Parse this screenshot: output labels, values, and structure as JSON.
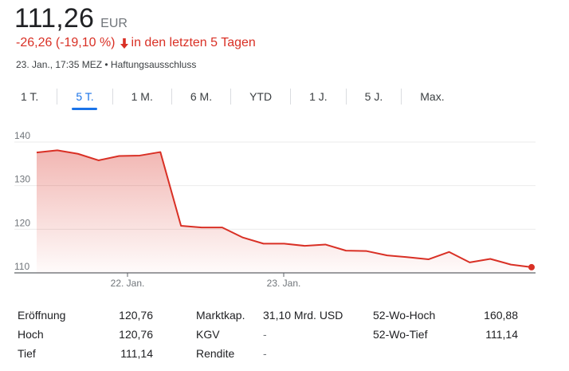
{
  "price": {
    "value": "111,26",
    "currency": "EUR"
  },
  "change": {
    "text": "-26,26 (-19,10 %)",
    "period": "in den letzten 5 Tagen",
    "color": "#d93025"
  },
  "meta": {
    "text": "23. Jan., 17:35 MEZ • Haftungsausschluss"
  },
  "tabs": [
    {
      "label": "1 T.",
      "active": false
    },
    {
      "label": "5 T.",
      "active": true
    },
    {
      "label": "1 M.",
      "active": false
    },
    {
      "label": "6 M.",
      "active": false
    },
    {
      "label": "YTD",
      "active": false
    },
    {
      "label": "1 J.",
      "active": false
    },
    {
      "label": "5 J.",
      "active": false
    },
    {
      "label": "Max.",
      "active": false
    }
  ],
  "chart_data": {
    "type": "area",
    "title": "",
    "xlabel": "",
    "ylabel": "",
    "ylim": [
      110,
      140
    ],
    "y_ticks": [
      110,
      120,
      130,
      140
    ],
    "x_tick_labels": [
      "22. Jan.",
      "23. Jan."
    ],
    "grid": true,
    "color": "#d93025",
    "series": [
      {
        "values": [
          137.6,
          138.1,
          137.3,
          135.8,
          136.8,
          136.9,
          137.7,
          120.8,
          120.4,
          120.4,
          118.1,
          116.7,
          116.7,
          116.2,
          116.5,
          115.1,
          115.0,
          114.0,
          113.6,
          113.1,
          114.8,
          112.4,
          113.2,
          111.9,
          111.3
        ]
      }
    ]
  },
  "stats": [
    {
      "label": "Eröffnung",
      "value": "120,76",
      "label2": "Marktkap.",
      "value2": "31,10 Mrd. USD",
      "label3": "52-Wo-Hoch",
      "value3": "160,88"
    },
    {
      "label": "Hoch",
      "value": "120,76",
      "label2": "KGV",
      "value2": "-",
      "label3": "52-Wo-Tief",
      "value3": "111,14"
    },
    {
      "label": "Tief",
      "value": "111,14",
      "label2": "Rendite",
      "value2": "-",
      "label3": "",
      "value3": ""
    }
  ]
}
